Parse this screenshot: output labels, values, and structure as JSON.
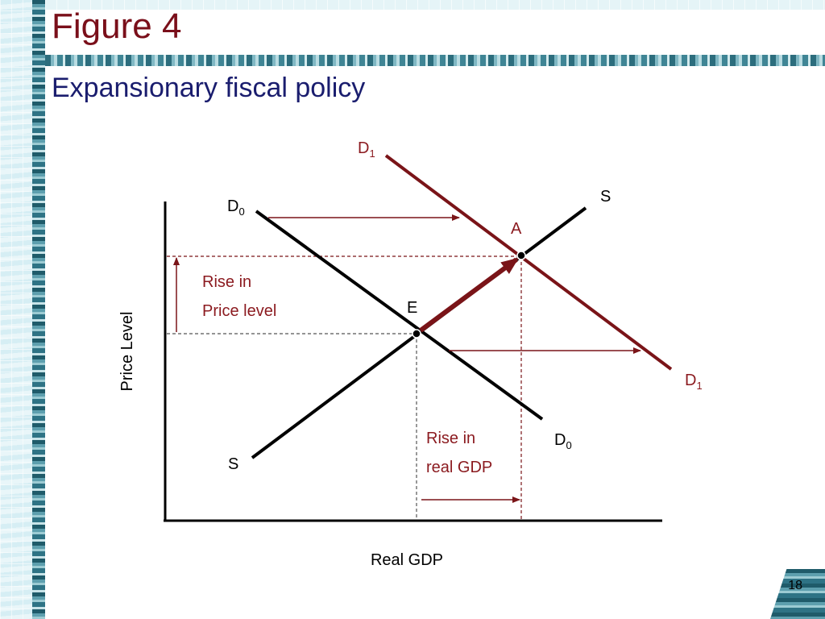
{
  "slide": {
    "title": "Figure 4",
    "subtitle": "Expansionary fiscal policy",
    "page_number": "18"
  },
  "diagram": {
    "x_axis_label": "Real GDP",
    "y_axis_label": "Price Level",
    "curves": {
      "supply": "S",
      "demand_initial": "D",
      "demand_initial_sub": "0",
      "demand_new": "D",
      "demand_new_sub": "1"
    },
    "points": {
      "initial_equilibrium": "E",
      "new_equilibrium": "A"
    },
    "annotations": {
      "price_rise_line1": "Rise in",
      "price_rise_line2": "Price level",
      "gdp_rise_line1": "Rise in",
      "gdp_rise_line2": "real GDP"
    }
  },
  "colors": {
    "title": "#7a0f1a",
    "subtitle": "#1a1d6e",
    "new_demand_curve": "#7a1418",
    "annotation_text": "#8b1a1f",
    "axis": "#000000"
  }
}
